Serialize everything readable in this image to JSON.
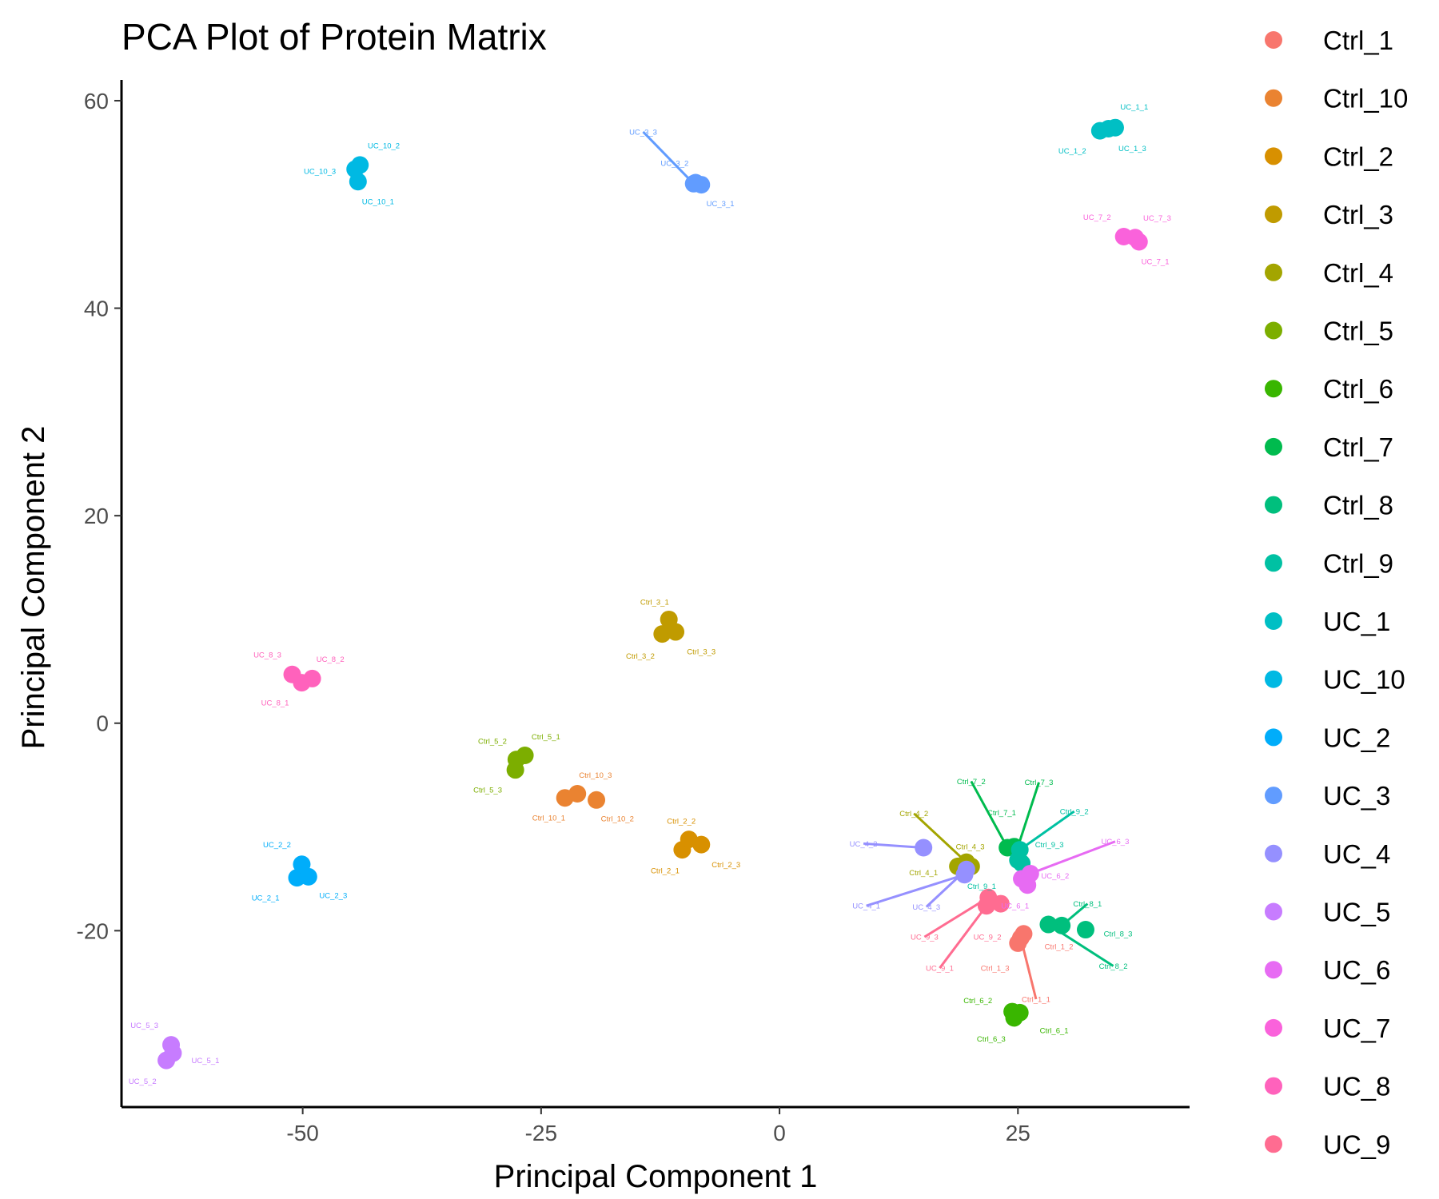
{
  "chart_data": {
    "type": "scatter",
    "title": "PCA Plot of Protein Matrix",
    "xlabel": "Principal Component 1",
    "ylabel": "Principal Component 2",
    "xlim": [
      -69,
      43
    ],
    "ylim": [
      -37,
      62
    ],
    "xticks": [
      -50,
      -25,
      0,
      25
    ],
    "xtick_labels": [
      "-50",
      "-25",
      "0",
      "25"
    ],
    "yticks": [
      -20,
      0,
      20,
      40,
      60
    ],
    "ytick_labels": [
      "-20",
      "0",
      "20",
      "40",
      "60"
    ],
    "grid": false,
    "legend_position": "right",
    "series": [
      {
        "name": "Ctrl_1",
        "color": "#F8766D",
        "points": [
          {
            "label": "Ctrl_1_1",
            "x": 25.3,
            "y": -20.7,
            "lx": 26.9,
            "ly": -26.6
          },
          {
            "label": "Ctrl_1_2",
            "x": 25.6,
            "y": -20.3,
            "lx": 29.3,
            "ly": -21.5
          },
          {
            "label": "Ctrl_1_3",
            "x": 25.0,
            "y": -21.2,
            "lx": 22.6,
            "ly": -23.6
          }
        ]
      },
      {
        "name": "Ctrl_10",
        "color": "#EA8331",
        "points": [
          {
            "label": "Ctrl_10_1",
            "x": -22.5,
            "y": -7.2,
            "lx": -24.2,
            "ly": -9.1
          },
          {
            "label": "Ctrl_10_2",
            "x": -19.2,
            "y": -7.4,
            "lx": -17.0,
            "ly": -9.2
          },
          {
            "label": "Ctrl_10_3",
            "x": -21.2,
            "y": -6.8,
            "lx": -19.3,
            "ly": -5.0
          }
        ]
      },
      {
        "name": "Ctrl_2",
        "color": "#D89000",
        "points": [
          {
            "label": "Ctrl_2_1",
            "x": -10.2,
            "y": -12.2,
            "lx": -12.0,
            "ly": -14.2
          },
          {
            "label": "Ctrl_2_2",
            "x": -9.5,
            "y": -11.2,
            "lx": -10.3,
            "ly": -9.4
          },
          {
            "label": "Ctrl_2_3",
            "x": -8.2,
            "y": -11.7,
            "lx": -5.6,
            "ly": -13.6
          }
        ]
      },
      {
        "name": "Ctrl_3",
        "color": "#C09B00",
        "points": [
          {
            "label": "Ctrl_3_1",
            "x": -11.6,
            "y": 10.0,
            "lx": -13.1,
            "ly": 11.7
          },
          {
            "label": "Ctrl_3_2",
            "x": -12.3,
            "y": 8.6,
            "lx": -14.6,
            "ly": 6.5
          },
          {
            "label": "Ctrl_3_3",
            "x": -10.9,
            "y": 8.8,
            "lx": -8.2,
            "ly": 6.9
          }
        ]
      },
      {
        "name": "Ctrl_4",
        "color": "#A3A500",
        "points": [
          {
            "label": "Ctrl_4_1",
            "x": 18.7,
            "y": -13.8,
            "lx": 15.1,
            "ly": -14.4
          },
          {
            "label": "Ctrl_4_2",
            "x": 19.6,
            "y": -13.4,
            "lx": 14.1,
            "ly": -8.7
          },
          {
            "label": "Ctrl_4_3",
            "x": 20.1,
            "y": -13.8,
            "lx": 20.0,
            "ly": -11.9
          }
        ]
      },
      {
        "name": "Ctrl_5",
        "color": "#7CAE00",
        "points": [
          {
            "label": "Ctrl_5_1",
            "x": -26.7,
            "y": -3.1,
            "lx": -24.5,
            "ly": -1.3
          },
          {
            "label": "Ctrl_5_2",
            "x": -27.6,
            "y": -3.5,
            "lx": -30.1,
            "ly": -1.7
          },
          {
            "label": "Ctrl_5_3",
            "x": -27.7,
            "y": -4.5,
            "lx": -30.6,
            "ly": -6.4
          }
        ]
      },
      {
        "name": "Ctrl_6",
        "color": "#39B600",
        "points": [
          {
            "label": "Ctrl_6_1",
            "x": 25.2,
            "y": -27.9,
            "lx": 28.8,
            "ly": -29.6
          },
          {
            "label": "Ctrl_6_2",
            "x": 24.4,
            "y": -27.8,
            "lx": 20.8,
            "ly": -26.7
          },
          {
            "label": "Ctrl_6_3",
            "x": 24.6,
            "y": -28.4,
            "lx": 22.2,
            "ly": -30.4
          }
        ]
      },
      {
        "name": "Ctrl_7",
        "color": "#00BB4E",
        "points": [
          {
            "label": "Ctrl_7_1",
            "x": 24.6,
            "y": -11.9,
            "lx": 23.3,
            "ly": -8.6
          },
          {
            "label": "Ctrl_7_2",
            "x": 23.9,
            "y": -12.0,
            "lx": 20.1,
            "ly": -5.6
          },
          {
            "label": "Ctrl_7_3",
            "x": 24.9,
            "y": -12.2,
            "lx": 27.2,
            "ly": -5.7
          }
        ]
      },
      {
        "name": "Ctrl_8",
        "color": "#00BF7D",
        "points": [
          {
            "label": "Ctrl_8_1",
            "x": 29.6,
            "y": -19.5,
            "lx": 32.3,
            "ly": -17.4
          },
          {
            "label": "Ctrl_8_2",
            "x": 28.2,
            "y": -19.4,
            "lx": 35.0,
            "ly": -23.4
          },
          {
            "label": "Ctrl_8_3",
            "x": 32.1,
            "y": -19.9,
            "lx": 35.5,
            "ly": -20.3
          }
        ]
      },
      {
        "name": "Ctrl_9",
        "color": "#00C1A3",
        "points": [
          {
            "label": "Ctrl_9_1",
            "x": 25.0,
            "y": -13.2,
            "lx": 21.2,
            "ly": -15.7
          },
          {
            "label": "Ctrl_9_2",
            "x": 25.2,
            "y": -12.2,
            "lx": 30.9,
            "ly": -8.5
          },
          {
            "label": "Ctrl_9_3",
            "x": 25.4,
            "y": -13.5,
            "lx": 28.3,
            "ly": -11.7
          }
        ]
      },
      {
        "name": "UC_1",
        "color": "#00BFC4",
        "points": [
          {
            "label": "UC_1_1",
            "x": 35.2,
            "y": 57.4,
            "lx": 37.2,
            "ly": 59.4
          },
          {
            "label": "UC_1_2",
            "x": 33.6,
            "y": 57.1,
            "lx": 30.7,
            "ly": 55.2
          },
          {
            "label": "UC_1_3",
            "x": 34.5,
            "y": 57.3,
            "lx": 37.0,
            "ly": 55.4
          }
        ]
      },
      {
        "name": "UC_10",
        "color": "#00B9E3",
        "points": [
          {
            "label": "UC_10_1",
            "x": -44.2,
            "y": 52.2,
            "lx": -42.1,
            "ly": 50.3
          },
          {
            "label": "UC_10_2",
            "x": -44.0,
            "y": 53.8,
            "lx": -41.5,
            "ly": 55.7
          },
          {
            "label": "UC_10_3",
            "x": -44.5,
            "y": 53.4,
            "lx": -48.2,
            "ly": 53.2
          }
        ]
      },
      {
        "name": "UC_2",
        "color": "#00ADFA",
        "points": [
          {
            "label": "UC_2_1",
            "x": -50.6,
            "y": -14.9,
            "lx": -53.9,
            "ly": -16.8
          },
          {
            "label": "UC_2_2",
            "x": -50.1,
            "y": -13.6,
            "lx": -52.7,
            "ly": -11.7
          },
          {
            "label": "UC_2_3",
            "x": -49.4,
            "y": -14.8,
            "lx": -46.8,
            "ly": -16.6
          }
        ]
      },
      {
        "name": "UC_3",
        "color": "#619CFF",
        "points": [
          {
            "label": "UC_3_1",
            "x": -8.2,
            "y": 51.9,
            "lx": -6.2,
            "ly": 50.1
          },
          {
            "label": "UC_3_2",
            "x": -8.8,
            "y": 52.1,
            "lx": -11.0,
            "ly": 54.0
          },
          {
            "label": "UC_3_3",
            "x": -9.0,
            "y": 52.0,
            "lx": -14.3,
            "ly": 57.0
          }
        ]
      },
      {
        "name": "UC_4",
        "color": "#9590FF",
        "points": [
          {
            "label": "UC_4_1",
            "x": 19.4,
            "y": -14.6,
            "lx": 9.1,
            "ly": -17.6
          },
          {
            "label": "UC_4_2",
            "x": 15.1,
            "y": -12.0,
            "lx": 8.8,
            "ly": -11.6
          },
          {
            "label": "UC_4_3",
            "x": 19.6,
            "y": -14.1,
            "lx": 15.4,
            "ly": -17.7
          }
        ]
      },
      {
        "name": "UC_5",
        "color": "#C77CFF",
        "points": [
          {
            "label": "UC_5_1",
            "x": -63.6,
            "y": -31.8,
            "lx": -60.2,
            "ly": -32.5
          },
          {
            "label": "UC_5_2",
            "x": -64.3,
            "y": -32.5,
            "lx": -66.8,
            "ly": -34.5
          },
          {
            "label": "UC_5_3",
            "x": -63.8,
            "y": -31.0,
            "lx": -66.6,
            "ly": -29.1
          }
        ]
      },
      {
        "name": "UC_6",
        "color": "#E76BF3",
        "points": [
          {
            "label": "UC_6_1",
            "x": 25.4,
            "y": -15.0,
            "lx": 24.7,
            "ly": -17.6
          },
          {
            "label": "UC_6_2",
            "x": 26.0,
            "y": -15.6,
            "lx": 28.9,
            "ly": -14.7
          },
          {
            "label": "UC_6_3",
            "x": 26.3,
            "y": -14.5,
            "lx": 35.2,
            "ly": -11.4
          }
        ]
      },
      {
        "name": "UC_7",
        "color": "#FA62DB",
        "points": [
          {
            "label": "UC_7_1",
            "x": 37.7,
            "y": 46.4,
            "lx": 39.4,
            "ly": 44.5
          },
          {
            "label": "UC_7_2",
            "x": 36.1,
            "y": 46.9,
            "lx": 33.3,
            "ly": 48.8
          },
          {
            "label": "UC_7_3",
            "x": 37.3,
            "y": 46.8,
            "lx": 39.6,
            "ly": 48.7
          }
        ]
      },
      {
        "name": "UC_8",
        "color": "#FF62BC",
        "points": [
          {
            "label": "UC_8_1",
            "x": -50.1,
            "y": 3.9,
            "lx": -52.9,
            "ly": 2.0
          },
          {
            "label": "UC_8_2",
            "x": -49.0,
            "y": 4.3,
            "lx": -47.1,
            "ly": 6.2
          },
          {
            "label": "UC_8_3",
            "x": -51.1,
            "y": 4.7,
            "lx": -53.7,
            "ly": 6.6
          }
        ]
      },
      {
        "name": "UC_9",
        "color": "#FF6C91",
        "points": [
          {
            "label": "UC_9_1",
            "x": 21.7,
            "y": -17.6,
            "lx": 16.8,
            "ly": -23.6
          },
          {
            "label": "UC_9_2",
            "x": 23.2,
            "y": -17.4,
            "lx": 21.8,
            "ly": -20.6
          },
          {
            "label": "UC_9_3",
            "x": 21.9,
            "y": -16.8,
            "lx": 15.2,
            "ly": -20.6
          }
        ]
      }
    ],
    "leader_lines": [
      "UC_3_3",
      "Ctrl_4_2",
      "Ctrl_7_2",
      "Ctrl_7_3",
      "Ctrl_9_2",
      "UC_4_1",
      "UC_4_2",
      "UC_4_3",
      "UC_6_3",
      "UC_9_1",
      "UC_9_3",
      "Ctrl_1_1",
      "Ctrl_8_1",
      "Ctrl_8_2"
    ]
  }
}
